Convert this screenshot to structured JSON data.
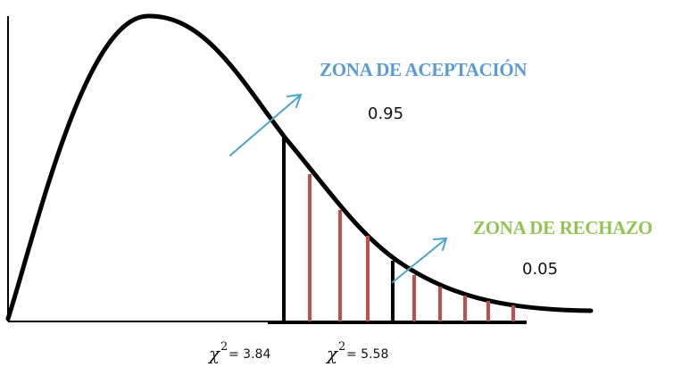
{
  "colors": {
    "acceptance_title": "#5b9bd5",
    "rejection_title": "#92c353",
    "arrows": "#4aa3c8",
    "red_lines": "#c0504d",
    "curve": "#000000"
  },
  "acceptance": {
    "title": "ZONA DE ACEPTACIÓN",
    "probability": "0.95"
  },
  "rejection": {
    "title": "ZONA DE RECHAZO",
    "probability": "0.05"
  },
  "critical_values": [
    {
      "symbol": "χ",
      "power": "2",
      "rest": " = 3.84"
    },
    {
      "symbol": "χ",
      "power": "2",
      "rest": " = 5.58"
    }
  ]
}
